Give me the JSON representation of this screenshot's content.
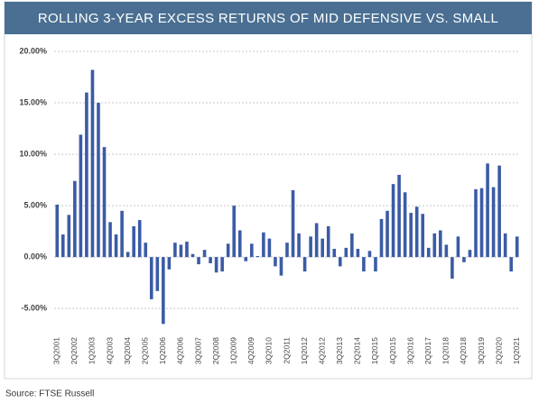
{
  "chart_data": {
    "type": "bar",
    "title": "ROLLING 3-YEAR EXCESS RETURNS OF MID DEFENSIVE VS. SMALL",
    "source": "Source: FTSE Russell",
    "categories": [
      "3Q2001",
      null,
      null,
      "2Q2002",
      null,
      null,
      "1Q2003",
      null,
      null,
      "4Q2003",
      null,
      null,
      "3Q2004",
      null,
      null,
      "2Q2005",
      null,
      null,
      "1Q2006",
      null,
      null,
      "4Q2006",
      null,
      null,
      "3Q2007",
      null,
      null,
      "2Q2008",
      null,
      null,
      "1Q2009",
      null,
      null,
      "4Q2009",
      null,
      null,
      "3Q2010",
      null,
      null,
      "2Q2011",
      null,
      null,
      "1Q2012",
      null,
      null,
      "4Q2012",
      null,
      null,
      "3Q2013",
      null,
      null,
      "2Q2014",
      null,
      null,
      "1Q2015",
      null,
      null,
      "4Q2015",
      null,
      null,
      "3Q2016",
      null,
      null,
      "2Q2017",
      null,
      null,
      "1Q2018",
      null,
      null,
      "4Q2018",
      null,
      null,
      "3Q2019",
      null,
      null,
      "2Q2020",
      null,
      null,
      "1Q2021"
    ],
    "values": [
      5.1,
      2.2,
      4.1,
      7.4,
      11.9,
      16,
      18.2,
      15,
      10.7,
      3.4,
      2.2,
      4.5,
      0.5,
      3,
      3.6,
      1.4,
      -4.1,
      -3.3,
      -6.5,
      -1.2,
      1.4,
      1.2,
      1.5,
      0.3,
      -0.7,
      0.7,
      -0.6,
      -1.5,
      -1.4,
      1.3,
      5,
      2.6,
      -0.4,
      1.3,
      0.1,
      2.4,
      1.8,
      -0.9,
      -1.8,
      1.4,
      6.5,
      2.3,
      -1.4,
      2,
      3.3,
      1.8,
      3,
      0.8,
      -0.9,
      0.9,
      2.3,
      0.8,
      -1.4,
      0.6,
      -1.4,
      3.7,
      4.5,
      7.1,
      8,
      6.3,
      4.3,
      4.9,
      4.2,
      0.9,
      2.3,
      2.6,
      1.2,
      -2.1,
      2,
      -0.5,
      0.7,
      6.6,
      6.7,
      9.1,
      6.8,
      8.9,
      2.3,
      -1.4,
      2
    ],
    "color": "#3b5ba5",
    "ylim": [
      -7,
      20
    ],
    "yticks": [
      {
        "value": -5,
        "label": "-5.00%"
      },
      {
        "value": 0,
        "label": "0.00%"
      },
      {
        "value": 5,
        "label": "5.00%"
      },
      {
        "value": 10,
        "label": "10.00%"
      },
      {
        "value": 15,
        "label": "15.00%"
      },
      {
        "value": 20,
        "label": "20.00%"
      }
    ],
    "grid": true
  }
}
